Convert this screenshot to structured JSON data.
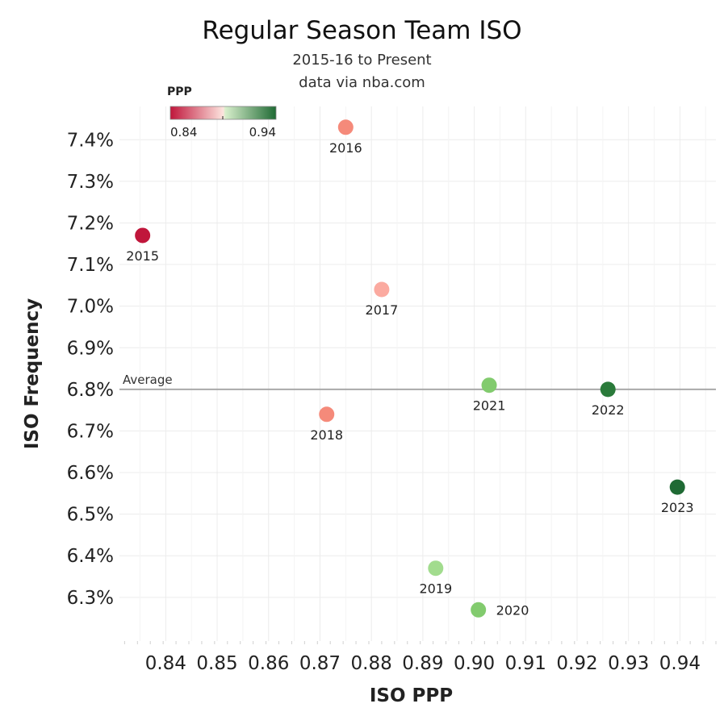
{
  "chart_data": {
    "type": "scatter",
    "title": "Regular Season Team ISO",
    "subtitle": "2015-16 to Present",
    "source": "data via nba.com",
    "xlabel": "ISO PPP",
    "ylabel": "ISO Frequency",
    "xlim": [
      0.831,
      0.947
    ],
    "ylim": [
      6.195,
      7.48
    ],
    "xticks": [
      0.84,
      0.85,
      0.86,
      0.87,
      0.88,
      0.89,
      0.9,
      0.91,
      0.92,
      0.93,
      0.94
    ],
    "xtick_labels": [
      "0.84",
      "0.85",
      "0.86",
      "0.87",
      "0.88",
      "0.89",
      "0.90",
      "0.91",
      "0.92",
      "0.93",
      "0.94"
    ],
    "yticks": [
      6.3,
      6.4,
      6.5,
      6.6,
      6.7,
      6.8,
      6.9,
      7.0,
      7.1,
      7.2,
      7.3,
      7.4
    ],
    "ytick_labels": [
      "6.3%",
      "6.4%",
      "6.5%",
      "6.6%",
      "6.7%",
      "6.8%",
      "6.9%",
      "7.0%",
      "7.1%",
      "7.2%",
      "7.3%",
      "7.4%"
    ],
    "grid": true,
    "average": {
      "label": "Average",
      "y": 6.8
    },
    "color_legend": {
      "title": "PPP",
      "min_label": "0.84",
      "max_label": "0.94",
      "min": 0.835,
      "max": 0.94,
      "placement": "top-left"
    },
    "points": [
      {
        "label": "2015",
        "x": 0.8355,
        "y": 7.17,
        "color": "#c0163b",
        "label_pos": "below"
      },
      {
        "label": "2016",
        "x": 0.875,
        "y": 7.43,
        "color": "#f58a7a",
        "label_pos": "below"
      },
      {
        "label": "2017",
        "x": 0.882,
        "y": 7.04,
        "color": "#fbaaa0",
        "label_pos": "below"
      },
      {
        "label": "2018",
        "x": 0.8713,
        "y": 6.74,
        "color": "#f58a7a",
        "label_pos": "below"
      },
      {
        "label": "2019",
        "x": 0.8925,
        "y": 6.37,
        "color": "#a2dc8e",
        "label_pos": "below"
      },
      {
        "label": "2020",
        "x": 0.9008,
        "y": 6.27,
        "color": "#82cb6e",
        "label_pos": "right"
      },
      {
        "label": "2021",
        "x": 0.9029,
        "y": 6.81,
        "color": "#82cb6e",
        "label_pos": "below"
      },
      {
        "label": "2022",
        "x": 0.926,
        "y": 6.8,
        "color": "#2a7a3a",
        "label_pos": "below"
      },
      {
        "label": "2023",
        "x": 0.9395,
        "y": 6.565,
        "color": "#1f6a34",
        "label_pos": "below"
      }
    ]
  }
}
